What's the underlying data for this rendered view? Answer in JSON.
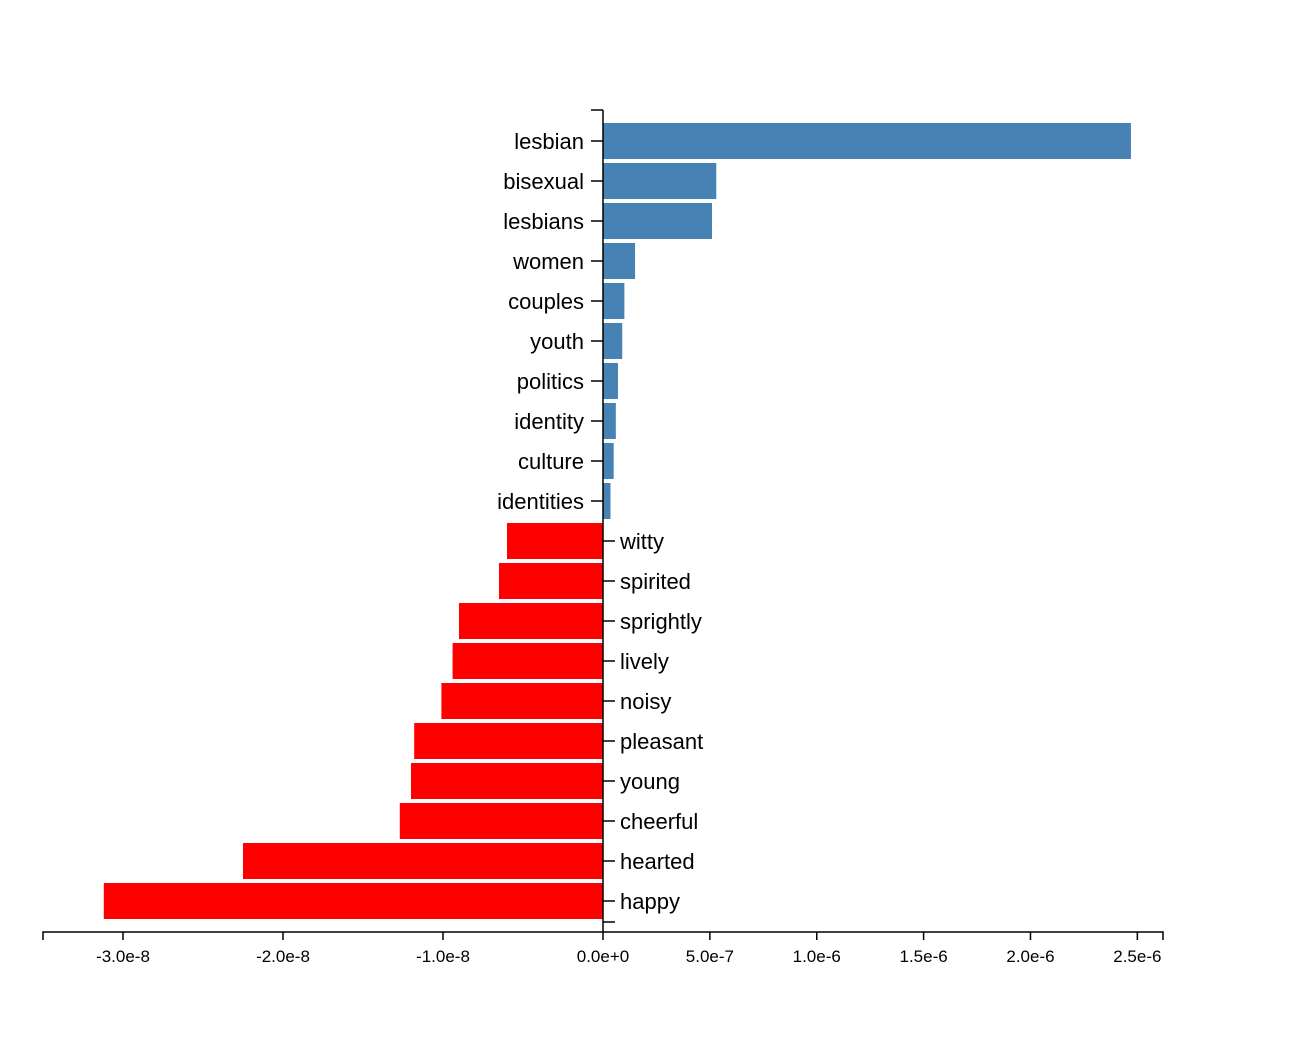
{
  "chart_data": {
    "type": "bar",
    "orientation": "horizontal",
    "colors": {
      "positive": "#4682b4",
      "negative": "#ff0000"
    },
    "categories": [
      "lesbian",
      "bisexual",
      "lesbians",
      "women",
      "couples",
      "youth",
      "politics",
      "identity",
      "culture",
      "identities",
      "witty",
      "spirited",
      "sprightly",
      "lively",
      "noisy",
      "pleasant",
      "young",
      "cheerful",
      "hearted",
      "happy"
    ],
    "values": [
      2.47e-06,
      5.3e-07,
      5.1e-07,
      1.5e-07,
      1e-07,
      9e-08,
      7e-08,
      6e-08,
      5e-08,
      3.5e-08,
      -6e-09,
      -6.5e-09,
      -9e-09,
      -9.4e-09,
      -1.01e-08,
      -1.18e-08,
      -1.2e-08,
      -1.27e-08,
      -2.25e-08,
      -3.12e-08
    ],
    "x_axis": {
      "negative_scale_max": -3.5e-08,
      "positive_scale_max": 2.62e-06,
      "negative_ticks": [
        -3e-08,
        -2e-08,
        -1e-08
      ],
      "positive_ticks": [
        0,
        5e-07,
        1e-06,
        1.5e-06,
        2e-06,
        2.5e-06
      ],
      "tick_labels": {
        "-3e-8": "-3.0e-8",
        "-2e-8": "-2.0e-8",
        "-1e-8": "-1.0e-8",
        "0": "0.0e+0",
        "5e-7": "5.0e-7",
        "0.000001": "1.0e-6",
        "0.0000015": "1.5e-6",
        "0.000002": "2.0e-6",
        "0.0000025": "2.5e-6"
      }
    },
    "title": "",
    "xlabel": "",
    "ylabel": "",
    "grid": false,
    "legend": "none"
  }
}
